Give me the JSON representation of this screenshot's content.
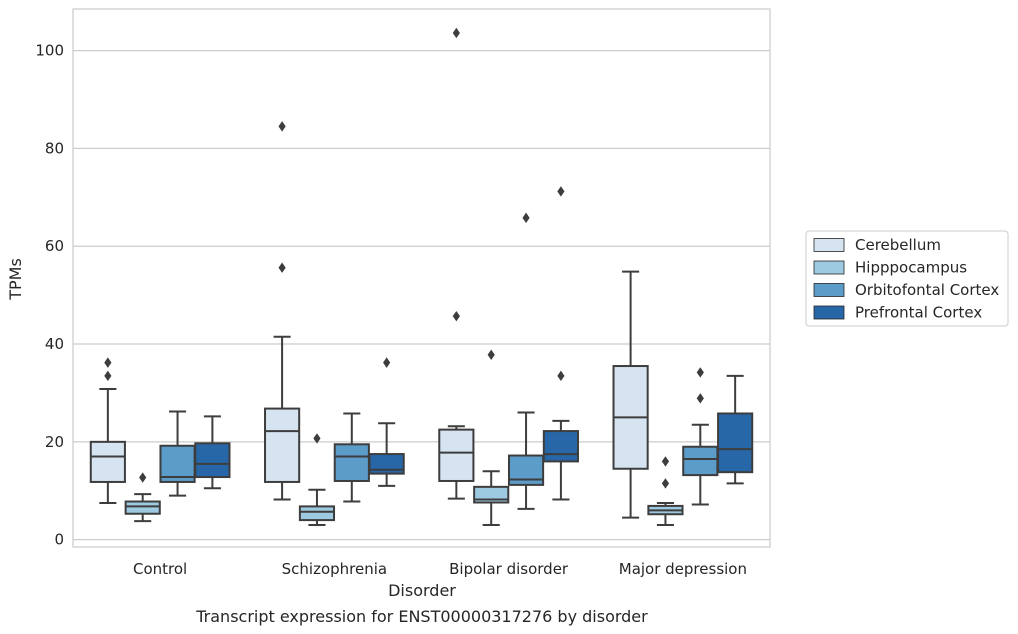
{
  "chart_data": {
    "type": "box",
    "title": "",
    "caption": "Transcript expression for ENST00000317276 by disorder",
    "xlabel": "Disorder",
    "ylabel": "TPMs",
    "ylim": [
      -1.5,
      108.5
    ],
    "yticks": [
      0,
      20,
      40,
      60,
      80,
      100
    ],
    "grid": "horizontal",
    "legend_position": "right",
    "categories": [
      "Control",
      "Schizophrenia",
      "Bipolar disorder",
      "Major depression"
    ],
    "series": [
      {
        "name": "Cerebellum",
        "color": "#d6e4f1",
        "boxes": [
          {
            "whisker_low": 7.5,
            "q1": 11.8,
            "median": 17.0,
            "q3": 20.0,
            "whisker_high": 30.8,
            "outliers": [
              33.5,
              36.2
            ]
          },
          {
            "whisker_low": 8.2,
            "q1": 11.8,
            "median": 22.2,
            "q3": 26.8,
            "whisker_high": 41.5,
            "outliers": [
              55.6,
              84.5
            ]
          },
          {
            "whisker_low": 8.4,
            "q1": 12.0,
            "median": 17.8,
            "q3": 22.5,
            "whisker_high": 23.2,
            "outliers": [
              45.7,
              103.6
            ]
          },
          {
            "whisker_low": 4.5,
            "q1": 14.5,
            "median": 25.0,
            "q3": 35.5,
            "whisker_high": 54.8,
            "outliers": []
          }
        ]
      },
      {
        "name": "Hipppocampus",
        "color": "#9ecae1",
        "boxes": [
          {
            "whisker_low": 3.8,
            "q1": 5.3,
            "median": 6.8,
            "q3": 7.8,
            "whisker_high": 9.3,
            "outliers": [
              12.7
            ]
          },
          {
            "whisker_low": 3.0,
            "q1": 4.0,
            "median": 5.7,
            "q3": 6.8,
            "whisker_high": 10.2,
            "outliers": [
              20.7
            ]
          },
          {
            "whisker_low": 3.0,
            "q1": 7.6,
            "median": 8.2,
            "q3": 10.8,
            "whisker_high": 14.0,
            "outliers": [
              37.8
            ]
          },
          {
            "whisker_low": 3.0,
            "q1": 5.2,
            "median": 6.0,
            "q3": 6.9,
            "whisker_high": 7.5,
            "outliers": [
              11.5,
              16.0
            ]
          }
        ]
      },
      {
        "name": "Orbitofontal Cortex",
        "color": "#5b9cc9",
        "boxes": [
          {
            "whisker_low": 9.0,
            "q1": 11.8,
            "median": 12.8,
            "q3": 19.2,
            "whisker_high": 26.2,
            "outliers": []
          },
          {
            "whisker_low": 7.8,
            "q1": 12.0,
            "median": 17.0,
            "q3": 19.5,
            "whisker_high": 25.8,
            "outliers": []
          },
          {
            "whisker_low": 6.3,
            "q1": 11.2,
            "median": 12.3,
            "q3": 17.2,
            "whisker_high": 26.0,
            "outliers": [
              65.8
            ]
          },
          {
            "whisker_low": 7.2,
            "q1": 13.2,
            "median": 16.5,
            "q3": 19.0,
            "whisker_high": 23.5,
            "outliers": [
              28.9,
              34.2
            ]
          }
        ]
      },
      {
        "name": "Prefrontal Cortex",
        "color": "#2767a8",
        "boxes": [
          {
            "whisker_low": 10.5,
            "q1": 12.8,
            "median": 15.5,
            "q3": 19.7,
            "whisker_high": 25.2,
            "outliers": []
          },
          {
            "whisker_low": 11.0,
            "q1": 13.5,
            "median": 14.3,
            "q3": 17.5,
            "whisker_high": 23.8,
            "outliers": [
              36.2
            ]
          },
          {
            "whisker_low": 8.2,
            "q1": 16.0,
            "median": 17.5,
            "q3": 22.2,
            "whisker_high": 24.3,
            "outliers": [
              33.5,
              71.2
            ]
          },
          {
            "whisker_low": 11.5,
            "q1": 13.8,
            "median": 18.5,
            "q3": 25.8,
            "whisker_high": 33.5,
            "outliers": []
          }
        ]
      }
    ]
  }
}
